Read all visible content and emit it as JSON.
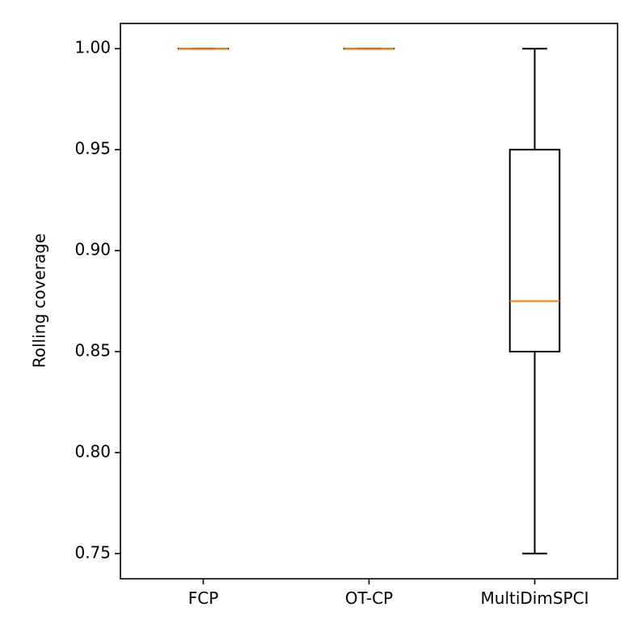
{
  "chart_data": {
    "type": "boxplot",
    "title": "",
    "xlabel": "",
    "ylabel": "Rolling coverage",
    "ylim": [
      0.7375,
      1.0125
    ],
    "grid": false,
    "yticks": [
      0.75,
      0.8,
      0.85,
      0.9,
      0.95,
      1.0
    ],
    "ytick_labels": [
      "0.75",
      "0.80",
      "0.85",
      "0.90",
      "0.95",
      "1.00"
    ],
    "categories": [
      "FCP",
      "OT-CP",
      "MultiDimSPCI"
    ],
    "boxes": [
      {
        "label": "FCP",
        "whisker_low": 1.0,
        "q1": 1.0,
        "median": 1.0,
        "q3": 1.0,
        "whisker_high": 1.0
      },
      {
        "label": "OT-CP",
        "whisker_low": 1.0,
        "q1": 1.0,
        "median": 1.0,
        "q3": 1.0,
        "whisker_high": 1.0
      },
      {
        "label": "MultiDimSPCI",
        "whisker_low": 0.75,
        "q1": 0.85,
        "median": 0.875,
        "q3": 0.95,
        "whisker_high": 1.0
      }
    ],
    "colors": {
      "box": "#000000",
      "median": "#ff7f0e"
    }
  }
}
